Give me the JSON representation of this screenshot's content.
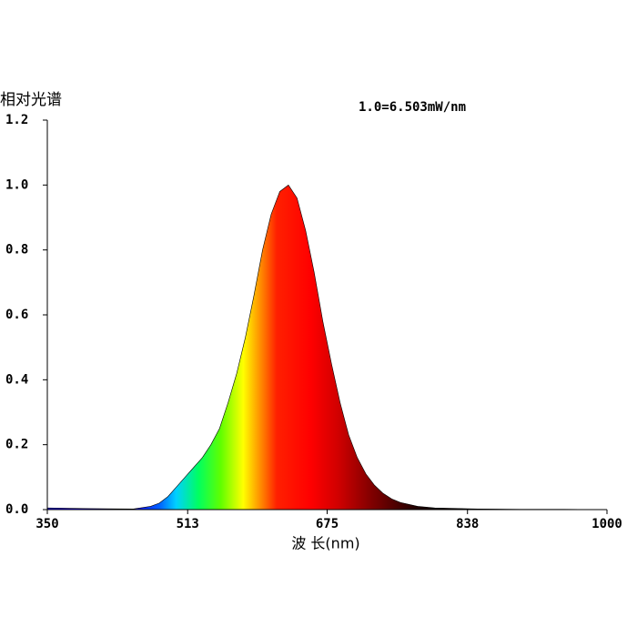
{
  "chart_data": {
    "type": "area",
    "y_label": "相对光谱",
    "annotation": "1.0=6.503mW/nm",
    "x_label": "波 长(nm)",
    "x": [
      350,
      400,
      450,
      470,
      480,
      490,
      500,
      510,
      520,
      530,
      540,
      550,
      560,
      570,
      580,
      590,
      600,
      610,
      620,
      630,
      640,
      650,
      660,
      670,
      680,
      690,
      700,
      710,
      720,
      730,
      740,
      750,
      760,
      780,
      800,
      850,
      900,
      950,
      1000
    ],
    "values": [
      0.005,
      0.003,
      0.002,
      0.01,
      0.02,
      0.04,
      0.07,
      0.1,
      0.13,
      0.16,
      0.2,
      0.25,
      0.33,
      0.42,
      0.53,
      0.66,
      0.8,
      0.91,
      0.98,
      1.0,
      0.96,
      0.86,
      0.73,
      0.58,
      0.45,
      0.33,
      0.23,
      0.16,
      0.11,
      0.075,
      0.05,
      0.033,
      0.022,
      0.01,
      0.005,
      0.002,
      0.001,
      0.001,
      0
    ],
    "xlim": [
      350,
      1000
    ],
    "xticks": [
      350,
      513,
      675,
      838,
      1000
    ],
    "ylim": [
      0,
      1.2
    ],
    "yticks": [
      {
        "value": 0,
        "label": "0.0"
      },
      0.2,
      0.4,
      0.6,
      0.8,
      {
        "value": 1,
        "label": "1.0"
      },
      1.2
    ]
  }
}
